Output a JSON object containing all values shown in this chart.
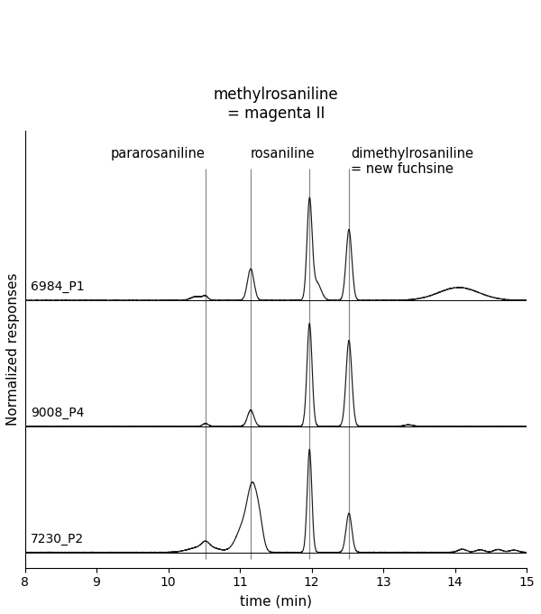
{
  "title_line1": "methylrosaniline",
  "title_line2": "= magenta II",
  "xlabel": "time (min)",
  "ylabel": "Normalized responses",
  "xlim": [
    8,
    15
  ],
  "xticks": [
    8,
    9,
    10,
    11,
    12,
    13,
    14,
    15
  ],
  "vlines": [
    10.52,
    11.15,
    11.97,
    12.52
  ],
  "background_color": "#ffffff",
  "line_color": "#1a1a1a",
  "vline_color": "#888888",
  "fontsize_title": 12,
  "fontsize_axis": 11,
  "fontsize_annot": 10.5,
  "fontsize_trace_label": 10
}
